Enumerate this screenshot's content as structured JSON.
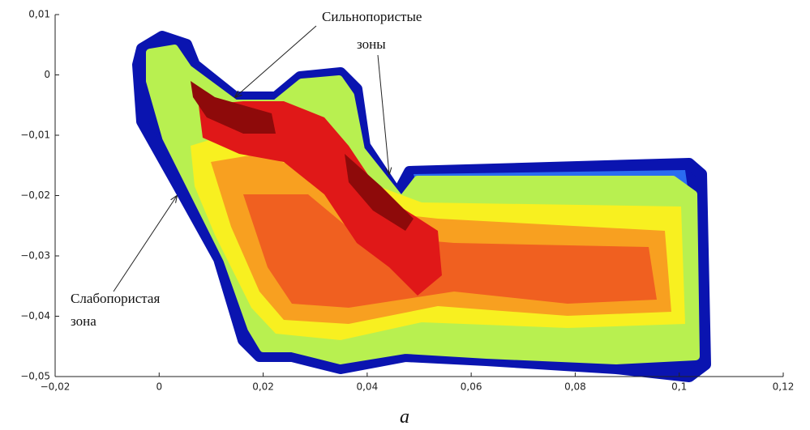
{
  "chart_data": {
    "type": "porosity-map",
    "xlim": [
      -0.02,
      0.12
    ],
    "ylim": [
      -0.05,
      0.01
    ],
    "xticks": [
      {
        "value": -0.02,
        "label": "−0,02"
      },
      0,
      {
        "value": 0.02,
        "label": "0,02"
      },
      {
        "value": 0.04,
        "label": "0,04"
      },
      {
        "value": 0.06,
        "label": "0,06"
      },
      {
        "value": 0.08,
        "label": "0,08"
      },
      {
        "value": 0.1,
        "label": "0,1"
      },
      {
        "value": 0.12,
        "label": "0,12"
      }
    ],
    "yticks": [
      {
        "value": 0.01,
        "label": "0,01"
      },
      0,
      {
        "value": -0.01,
        "label": "−0,01"
      },
      {
        "value": -0.02,
        "label": "−0,02"
      },
      {
        "value": -0.03,
        "label": "−0,03"
      },
      {
        "value": -0.04,
        "label": "−0,04"
      },
      {
        "value": -0.05,
        "label": "−0,05"
      }
    ],
    "annotations": [
      {
        "lines": [
          "Сильнопористые",
          "зоны"
        ]
      },
      {
        "lines": [
          "Слабопористая",
          "зона"
        ]
      }
    ],
    "caption": "a"
  }
}
